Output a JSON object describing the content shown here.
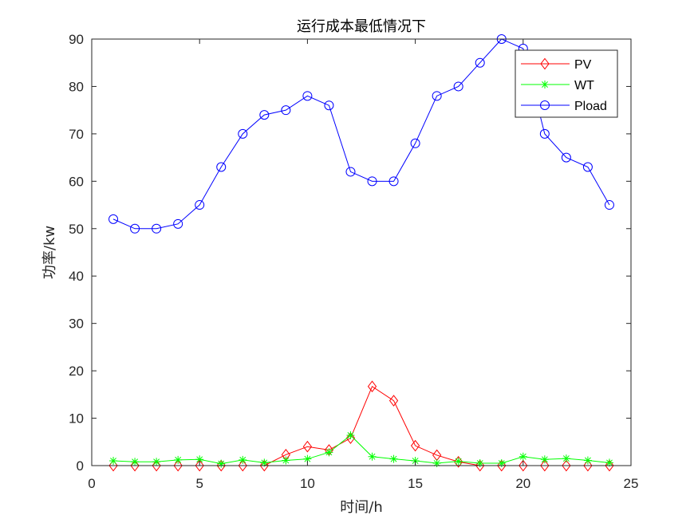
{
  "chart_data": {
    "type": "line",
    "title": "运行成本最低情况下",
    "xlabel": "时间/h",
    "ylabel": "功率/kw",
    "xlim": [
      0,
      25
    ],
    "ylim": [
      0,
      90
    ],
    "xticks": [
      0,
      5,
      10,
      15,
      20,
      25
    ],
    "yticks": [
      0,
      10,
      20,
      30,
      40,
      50,
      60,
      70,
      80,
      90
    ],
    "grid": false,
    "legend_position": "top-right",
    "x": [
      1,
      2,
      3,
      4,
      5,
      6,
      7,
      8,
      9,
      10,
      11,
      12,
      13,
      14,
      15,
      16,
      17,
      18,
      19,
      20,
      21,
      22,
      23,
      24
    ],
    "series": [
      {
        "name": "PV",
        "color": "#ff0000",
        "marker": "diamond",
        "values": [
          0,
          0,
          0,
          0,
          0,
          0,
          0,
          0,
          2.3,
          4.0,
          3.3,
          5.8,
          16.7,
          13.7,
          4.2,
          2.2,
          0.8,
          0,
          0,
          0,
          0,
          0,
          0,
          0
        ]
      },
      {
        "name": "WT",
        "color": "#00ff00",
        "marker": "asterisk",
        "values": [
          1.0,
          0.8,
          0.8,
          1.2,
          1.3,
          0.4,
          1.2,
          0.6,
          1.1,
          1.4,
          2.8,
          6.4,
          1.9,
          1.4,
          1.0,
          0.5,
          0.9,
          0.5,
          0.5,
          1.9,
          1.3,
          1.5,
          1.1,
          0.6
        ]
      },
      {
        "name": "Pload",
        "color": "#0000ff",
        "marker": "circle",
        "values": [
          52,
          50,
          50,
          51,
          55,
          63,
          70,
          74,
          75,
          78,
          76,
          62,
          60,
          60,
          68,
          78,
          80,
          85,
          90,
          88,
          70,
          65,
          63,
          55
        ]
      }
    ]
  }
}
